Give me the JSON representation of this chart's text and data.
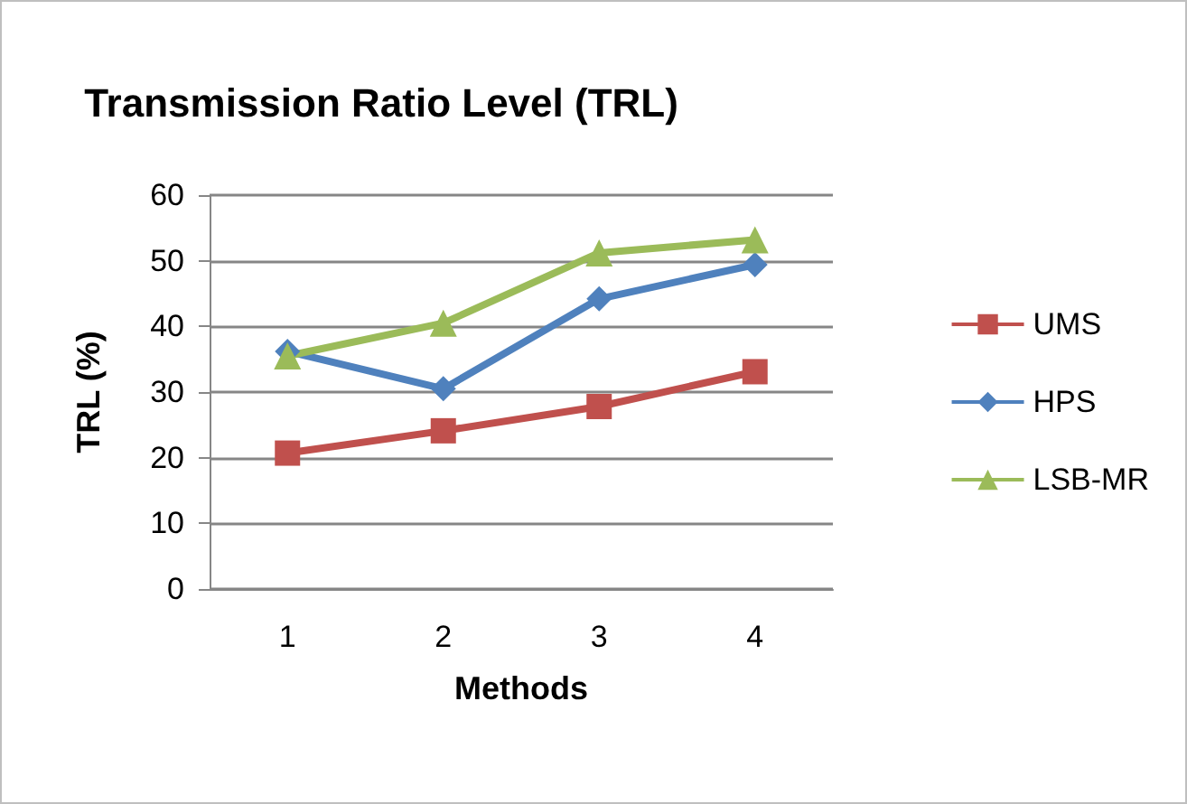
{
  "chart_data": {
    "type": "line",
    "title": "Transmission Ratio Level (TRL)",
    "xlabel": "Methods",
    "ylabel": "TRL (%)",
    "categories": [
      "1",
      "2",
      "3",
      "4"
    ],
    "series": [
      {
        "name": "UMS",
        "color": "#c0504d",
        "marker": "square",
        "values": [
          20.7,
          24.1,
          27.8,
          33.1
        ]
      },
      {
        "name": "HPS",
        "color": "#4f81bd",
        "marker": "diamond",
        "values": [
          36.2,
          30.5,
          44.2,
          49.4
        ]
      },
      {
        "name": "LSB-MR",
        "color": "#9bbb59",
        "marker": "triangle",
        "values": [
          35.5,
          40.5,
          51.2,
          53.2
        ]
      }
    ],
    "ylim": [
      0,
      60
    ],
    "yticks": [
      0,
      10,
      20,
      30,
      40,
      50,
      60
    ],
    "grid": "y",
    "legend": "right"
  }
}
